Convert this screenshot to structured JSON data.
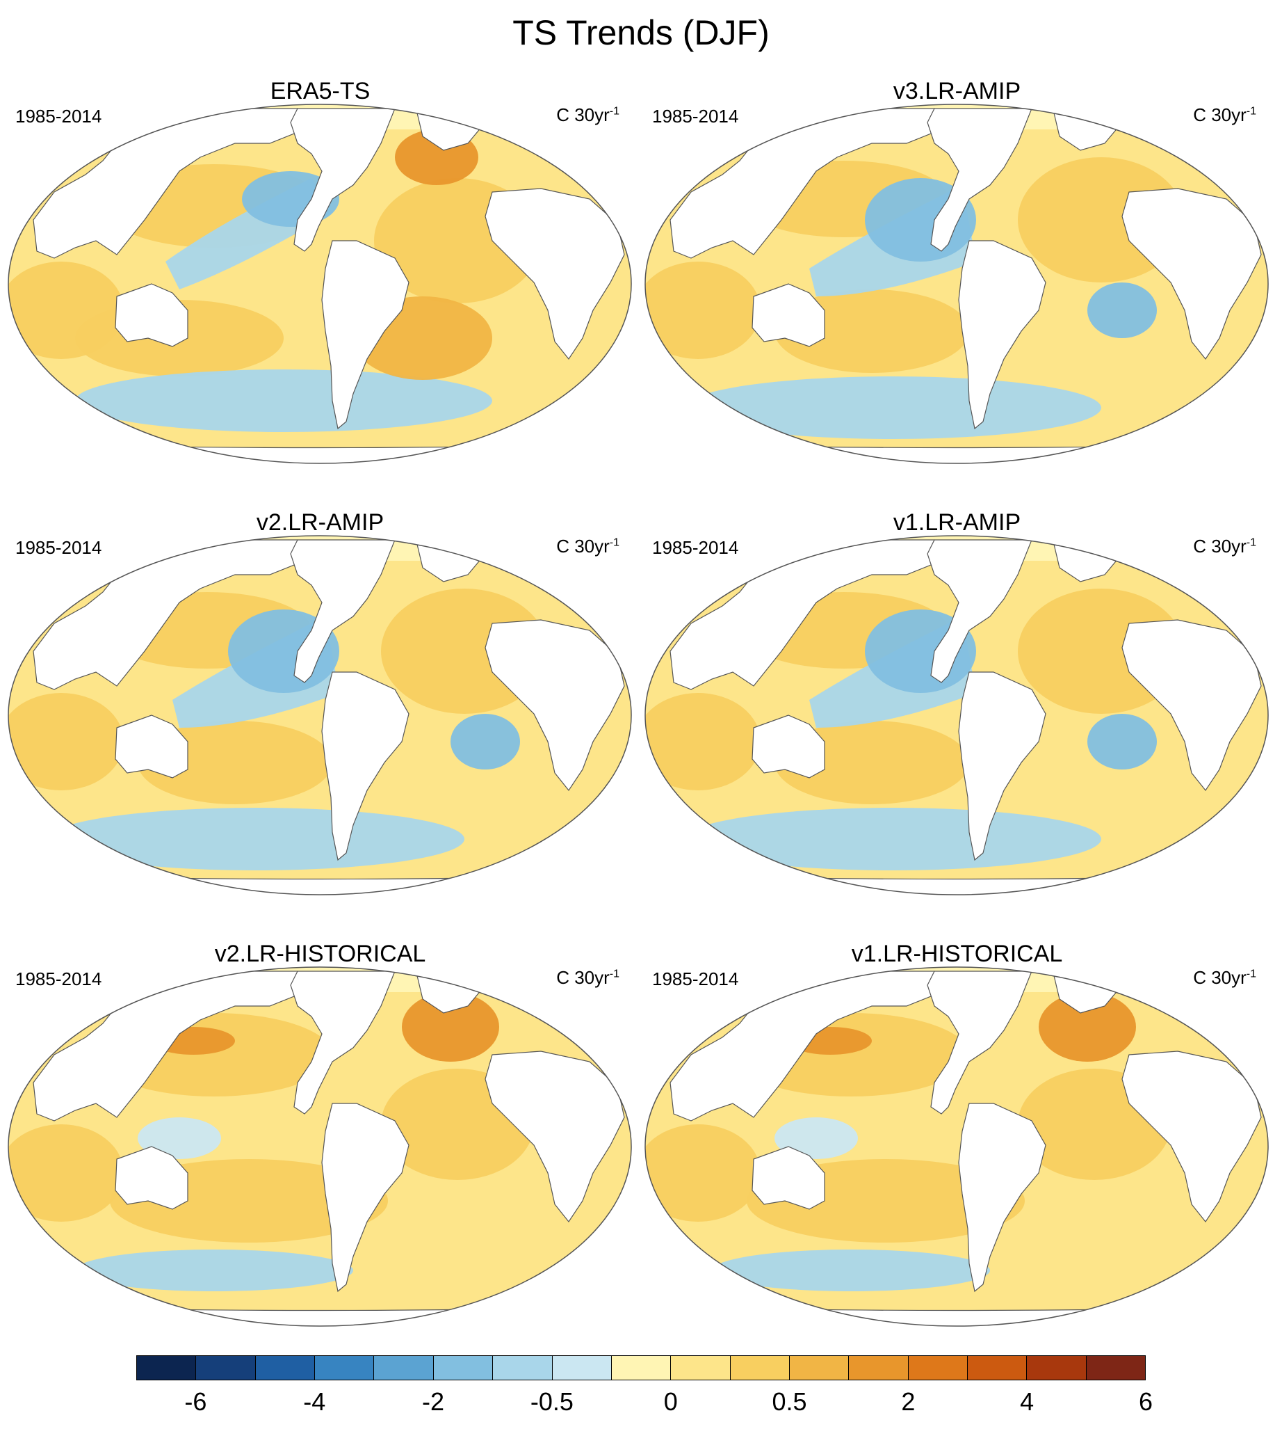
{
  "figure": {
    "title": "TS Trends (DJF)"
  },
  "panels": [
    {
      "id": "era5",
      "title": "ERA5-TS",
      "period": "1985-2014",
      "units_base": "C 30yr",
      "units_exp": "-1",
      "pattern": "obs"
    },
    {
      "id": "v3amip",
      "title": "v3.LR-AMIP",
      "period": "1985-2014",
      "units_base": "C 30yr",
      "units_exp": "-1",
      "pattern": "amip"
    },
    {
      "id": "v2amip",
      "title": "v2.LR-AMIP",
      "period": "1985-2014",
      "units_base": "C 30yr",
      "units_exp": "-1",
      "pattern": "amip"
    },
    {
      "id": "v1amip",
      "title": "v1.LR-AMIP",
      "period": "1985-2014",
      "units_base": "C 30yr",
      "units_exp": "-1",
      "pattern": "amip"
    },
    {
      "id": "v2hist",
      "title": "v2.LR-HISTORICAL",
      "period": "1985-2014",
      "units_base": "C 30yr",
      "units_exp": "-1",
      "pattern": "hist"
    },
    {
      "id": "v1hist",
      "title": "v1.LR-HISTORICAL",
      "period": "1985-2014",
      "units_base": "C 30yr",
      "units_exp": "-1",
      "pattern": "hist"
    }
  ],
  "colorbar": {
    "colors": [
      "#0c2550",
      "#153f7a",
      "#1f5fa3",
      "#3784c1",
      "#5ba3d2",
      "#82bfe0",
      "#a9d6ea",
      "#cbe7f2",
      "#fff5b4",
      "#fde58a",
      "#f8cf60",
      "#f1b545",
      "#e8962c",
      "#de781a",
      "#cc5a10",
      "#a8380d",
      "#7e2616"
    ],
    "tick_labels": [
      "-6",
      "-4",
      "-2",
      "-0.5",
      "0",
      "0.5",
      "2",
      "4",
      "6"
    ],
    "tick_boundaries": [
      1,
      3,
      5,
      7,
      9,
      11,
      13,
      15,
      17
    ]
  },
  "palette": {
    "ocean_warm": "#f8cf60",
    "ocean_mid": "#fde58a",
    "ocean_light": "#fff5b4",
    "cool_1": "#cbe7f2",
    "cool_2": "#a9d6ea",
    "cool_3": "#82bfe0",
    "warm_deep": "#f1b545",
    "hot": "#e8962c",
    "land": "#ffffff",
    "outline": "#555555"
  }
}
